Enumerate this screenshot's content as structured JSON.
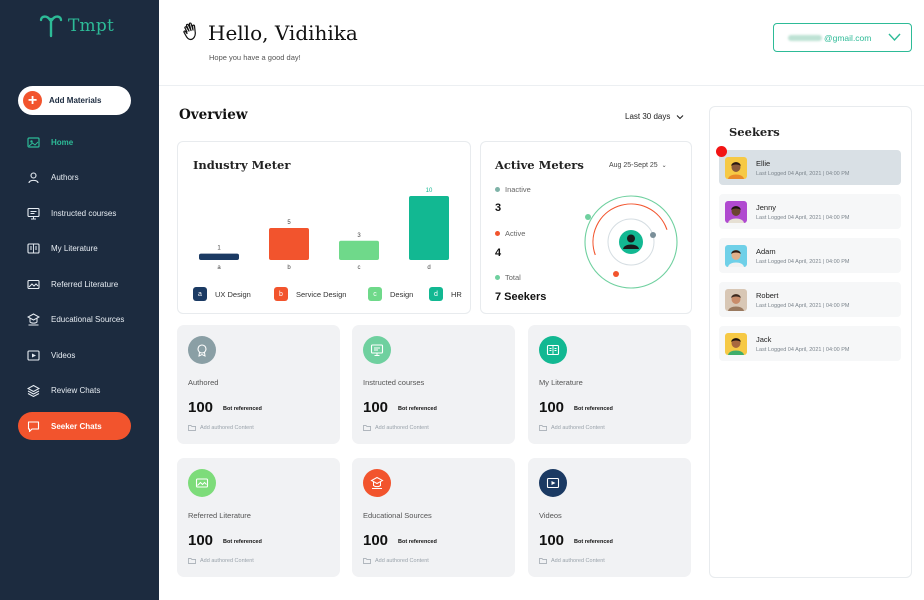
{
  "app": {
    "logo_text": "Tmpt"
  },
  "sidebar": {
    "add_button": "Add Materials",
    "items": [
      {
        "label": "Home",
        "icon": "home-icon"
      },
      {
        "label": "Authors",
        "icon": "authors-icon"
      },
      {
        "label": "Instructed courses",
        "icon": "courses-icon"
      },
      {
        "label": "My Literature",
        "icon": "literature-icon"
      },
      {
        "label": "Referred Literature",
        "icon": "referred-icon"
      },
      {
        "label": "Educational Sources",
        "icon": "sources-icon"
      },
      {
        "label": "Videos",
        "icon": "video-icon"
      },
      {
        "label": "Review Chats",
        "icon": "layers-icon"
      },
      {
        "label": "Seeker Chats",
        "icon": "chat-icon"
      }
    ]
  },
  "header": {
    "greeting": "Hello, Vidihika",
    "subtitle": "Hope you have a good day!",
    "email_domain": "@gmail.com"
  },
  "overview": {
    "title": "Overview",
    "period": "Last 30 days"
  },
  "industry_meter": {
    "title": "Industry Meter",
    "legend": [
      {
        "key": "a",
        "label": "UX Design",
        "color": "#1b3a63"
      },
      {
        "key": "b",
        "label": "Service Design",
        "color": "#f2542d"
      },
      {
        "key": "c",
        "label": "Design",
        "color": "#6fd98a"
      },
      {
        "key": "d",
        "label": "HR",
        "color": "#12b892"
      }
    ]
  },
  "chart_data": {
    "type": "bar",
    "title": "Industry Meter",
    "categories": [
      "a",
      "b",
      "c",
      "d"
    ],
    "values": [
      1,
      5,
      3,
      10
    ],
    "colors": [
      "#1b3a63",
      "#f2542d",
      "#6fd98a",
      "#12b892"
    ],
    "ylim": [
      0,
      10
    ]
  },
  "active_meters": {
    "title": "Active Meters",
    "date_range": "Aug 25-Sept 25",
    "inactive_label": "Inactive",
    "inactive_value": "3",
    "active_label": "Active",
    "active_value": "4",
    "total_label": "Total",
    "total_value": "7 Seekers"
  },
  "tiles": [
    {
      "label": "Authored",
      "value": "100",
      "ref": "Bot referenced",
      "add": "Add authored Content",
      "color": "#8a9fa5"
    },
    {
      "label": "Instructed courses",
      "value": "100",
      "ref": "Bot referenced",
      "add": "Add authored Content",
      "color": "#6fd09f"
    },
    {
      "label": "My Literature",
      "value": "100",
      "ref": "Bot referenced",
      "add": "Add authored Content",
      "color": "#12b892"
    },
    {
      "label": "Referred Literature",
      "value": "100",
      "ref": "Bot referenced",
      "add": "Add authored Content",
      "color": "#7ddc7a"
    },
    {
      "label": "Educational Sources",
      "value": "100",
      "ref": "Bot referenced",
      "add": "Add authored Content",
      "color": "#f2542d"
    },
    {
      "label": "Videos",
      "value": "100",
      "ref": "Bot referenced",
      "add": "Add authored Content",
      "color": "#1b3a63"
    }
  ],
  "seekers": {
    "title": "Seekers",
    "items": [
      {
        "name": "Ellie",
        "last_logged": "Last Logged  04 April, 2021 | 04:00 PM",
        "avatar_bg": "#f6c945",
        "skin": "#8a5a3b",
        "hair": "#2b1a12",
        "shirt": "#e98a2a"
      },
      {
        "name": "Jenny",
        "last_logged": "Last Logged  04 April, 2021 | 04:00 PM",
        "avatar_bg": "#b04ad0",
        "skin": "#6b4430",
        "hair": "#1c1410",
        "shirt": "#e6e0d4"
      },
      {
        "name": "Adam",
        "last_logged": "Last Logged  04 April, 2021 | 04:00 PM",
        "avatar_bg": "#6fd0e8",
        "skin": "#e0b08a",
        "hair": "#2b1d14",
        "shirt": "#f2f2f2"
      },
      {
        "name": "Robert",
        "last_logged": "Last Logged  04 April, 2021 | 04:00 PM",
        "avatar_bg": "#d8c7b5",
        "skin": "#c88c6a",
        "hair": "#3b2a20",
        "shirt": "#9a7a60"
      },
      {
        "name": "Jack",
        "last_logged": "Last Logged  04 April, 2021 | 04:00 PM",
        "avatar_bg": "#f6c945",
        "skin": "#a8683f",
        "hair": "#1c120c",
        "shirt": "#3fae6a"
      }
    ]
  }
}
